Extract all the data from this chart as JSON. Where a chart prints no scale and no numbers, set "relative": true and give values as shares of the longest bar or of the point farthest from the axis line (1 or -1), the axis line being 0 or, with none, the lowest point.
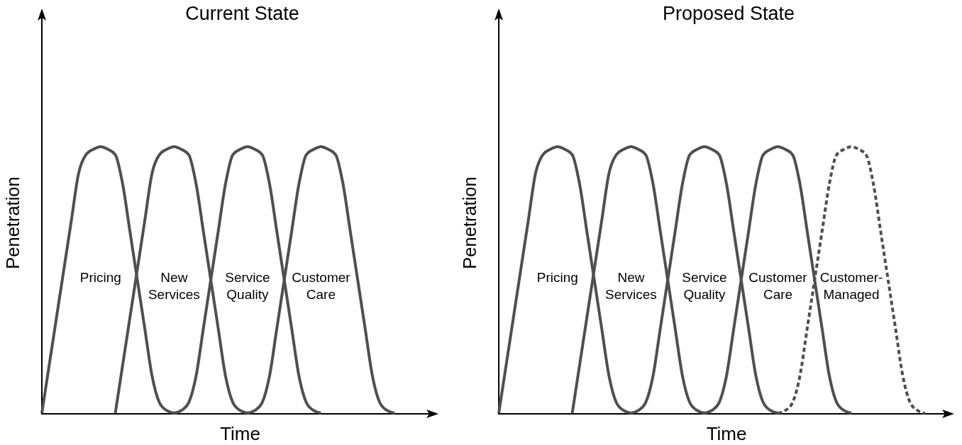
{
  "chart_data": [
    {
      "type": "line",
      "title": "Current State",
      "xlabel": "Time",
      "ylabel": "Penetration",
      "relative": true,
      "categories": [
        null,
        null,
        null,
        null,
        null,
        null,
        null,
        null,
        null,
        null,
        null,
        null,
        null,
        null,
        null,
        null,
        null,
        null,
        null,
        null,
        null,
        null,
        null,
        null,
        null,
        null,
        null,
        null,
        null,
        null,
        null,
        null,
        null,
        null,
        null,
        null,
        null,
        null,
        null,
        null,
        null,
        null,
        null,
        null,
        null,
        null,
        null,
        null,
        null,
        null,
        null,
        null,
        null,
        null,
        null
      ],
      "series": [
        {
          "name": "Pricing",
          "color": "#4f4f4f",
          "values": [
            0,
            0.18,
            0.36,
            0.54,
            0.72,
            0.9,
            0.97,
            0.99,
            1,
            0.99,
            0.97,
            0.86,
            0.68,
            0.5,
            0.32,
            0.14,
            0.04,
            0.01,
            0,
            null,
            null,
            null,
            null,
            null,
            null,
            null,
            null,
            null,
            null,
            null,
            null,
            null,
            null,
            null,
            null,
            null,
            null,
            null,
            null,
            null,
            null,
            null,
            null,
            null,
            null,
            null,
            null,
            null,
            null,
            null,
            null,
            null,
            null,
            null,
            null
          ]
        },
        {
          "name": "New Services",
          "color": "#4f4f4f",
          "values": [
            null,
            null,
            null,
            null,
            null,
            null,
            null,
            null,
            null,
            null,
            0,
            0.18,
            0.36,
            0.54,
            0.72,
            0.9,
            0.97,
            0.99,
            1,
            0.99,
            0.97,
            0.86,
            0.68,
            0.5,
            0.32,
            0.14,
            0.04,
            0.01,
            0,
            null,
            null,
            null,
            null,
            null,
            null,
            null,
            null,
            null,
            null,
            null,
            null,
            null,
            null,
            null,
            null,
            null,
            null,
            null,
            null,
            null,
            null,
            null,
            null,
            null,
            null
          ]
        },
        {
          "name": "Service Quality",
          "color": "#4f4f4f",
          "values": [
            null,
            null,
            null,
            null,
            null,
            null,
            null,
            null,
            null,
            null,
            null,
            null,
            null,
            null,
            null,
            null,
            null,
            null,
            0,
            0.01,
            0.04,
            0.14,
            0.32,
            0.5,
            0.68,
            0.86,
            0.97,
            0.99,
            1,
            0.99,
            0.97,
            0.86,
            0.68,
            0.5,
            0.32,
            0.14,
            0.04,
            0.01,
            0,
            null,
            null,
            null,
            null,
            null,
            null,
            null,
            null,
            null,
            null,
            null,
            null,
            null,
            null,
            null,
            null
          ]
        },
        {
          "name": "Customer Care",
          "color": "#4f4f4f",
          "values": [
            null,
            null,
            null,
            null,
            null,
            null,
            null,
            null,
            null,
            null,
            null,
            null,
            null,
            null,
            null,
            null,
            null,
            null,
            null,
            null,
            null,
            null,
            null,
            null,
            null,
            null,
            null,
            null,
            0,
            0.01,
            0.04,
            0.14,
            0.32,
            0.5,
            0.68,
            0.86,
            0.97,
            0.99,
            1,
            0.99,
            0.97,
            0.86,
            0.68,
            0.5,
            0.32,
            0.14,
            0.04,
            0.01,
            0,
            null,
            null,
            null,
            null,
            null,
            null
          ]
        }
      ]
    },
    {
      "type": "line",
      "title": "Proposed State",
      "xlabel": "Time",
      "ylabel": "Penetration",
      "relative": true,
      "categories": [
        null,
        null,
        null,
        null,
        null,
        null,
        null,
        null,
        null,
        null,
        null,
        null,
        null,
        null,
        null,
        null,
        null,
        null,
        null,
        null,
        null,
        null,
        null,
        null,
        null,
        null,
        null,
        null,
        null,
        null,
        null,
        null,
        null,
        null,
        null,
        null,
        null,
        null,
        null,
        null,
        null,
        null,
        null,
        null,
        null,
        null,
        null,
        null,
        null,
        null,
        null,
        null,
        null,
        null,
        null,
        null,
        null,
        null,
        null,
        null,
        null,
        null,
        null
      ],
      "series": [
        {
          "name": "Pricing",
          "color": "#4f4f4f",
          "values": [
            0,
            0.18,
            0.36,
            0.54,
            0.72,
            0.9,
            0.97,
            0.99,
            1,
            0.99,
            0.97,
            0.86,
            0.68,
            0.5,
            0.32,
            0.14,
            0.04,
            0.01,
            0,
            null,
            null,
            null,
            null,
            null,
            null,
            null,
            null,
            null,
            null,
            null,
            null,
            null,
            null,
            null,
            null,
            null,
            null,
            null,
            null,
            null,
            null,
            null,
            null,
            null,
            null,
            null,
            null,
            null,
            null,
            null,
            null,
            null,
            null,
            null,
            null,
            null,
            null,
            null,
            null,
            null,
            null,
            null,
            null
          ]
        },
        {
          "name": "New Services",
          "color": "#4f4f4f",
          "values": [
            null,
            null,
            null,
            null,
            null,
            null,
            null,
            null,
            null,
            null,
            0,
            0.18,
            0.36,
            0.54,
            0.72,
            0.9,
            0.97,
            0.99,
            1,
            0.99,
            0.97,
            0.86,
            0.68,
            0.5,
            0.32,
            0.14,
            0.04,
            0.01,
            0,
            null,
            null,
            null,
            null,
            null,
            null,
            null,
            null,
            null,
            null,
            null,
            null,
            null,
            null,
            null,
            null,
            null,
            null,
            null,
            null,
            null,
            null,
            null,
            null,
            null,
            null,
            null,
            null,
            null,
            null,
            null,
            null,
            null,
            null
          ]
        },
        {
          "name": "Service Quality",
          "color": "#4f4f4f",
          "values": [
            null,
            null,
            null,
            null,
            null,
            null,
            null,
            null,
            null,
            null,
            null,
            null,
            null,
            null,
            null,
            null,
            null,
            null,
            0,
            0.01,
            0.04,
            0.14,
            0.32,
            0.5,
            0.68,
            0.86,
            0.97,
            0.99,
            1,
            0.99,
            0.97,
            0.86,
            0.68,
            0.5,
            0.32,
            0.14,
            0.04,
            0.01,
            0,
            null,
            null,
            null,
            null,
            null,
            null,
            null,
            null,
            null,
            null,
            null,
            null,
            null,
            null,
            null,
            null,
            null,
            null,
            null,
            null,
            null,
            null,
            null,
            null
          ]
        },
        {
          "name": "Customer Care",
          "color": "#4f4f4f",
          "values": [
            null,
            null,
            null,
            null,
            null,
            null,
            null,
            null,
            null,
            null,
            null,
            null,
            null,
            null,
            null,
            null,
            null,
            null,
            null,
            null,
            null,
            null,
            null,
            null,
            null,
            null,
            null,
            null,
            0,
            0.01,
            0.04,
            0.14,
            0.32,
            0.5,
            0.68,
            0.86,
            0.97,
            0.99,
            1,
            0.99,
            0.97,
            0.86,
            0.68,
            0.5,
            0.32,
            0.14,
            0.04,
            0.01,
            0,
            null,
            null,
            null,
            null,
            null,
            null,
            null,
            null,
            null,
            null,
            null,
            null,
            null,
            null
          ]
        },
        {
          "name": "Customer-Managed",
          "color": "#4f4f4f",
          "line_style": "dashed",
          "values": [
            null,
            null,
            null,
            null,
            null,
            null,
            null,
            null,
            null,
            null,
            null,
            null,
            null,
            null,
            null,
            null,
            null,
            null,
            null,
            null,
            null,
            null,
            null,
            null,
            null,
            null,
            null,
            null,
            null,
            null,
            null,
            null,
            null,
            null,
            null,
            null,
            null,
            null,
            0,
            0.01,
            0.04,
            0.14,
            0.32,
            0.5,
            0.68,
            0.86,
            0.97,
            0.99,
            1,
            0.99,
            0.97,
            0.86,
            0.68,
            0.5,
            0.32,
            0.14,
            0.04,
            0.01,
            0,
            null,
            null,
            null,
            null
          ]
        }
      ]
    }
  ]
}
